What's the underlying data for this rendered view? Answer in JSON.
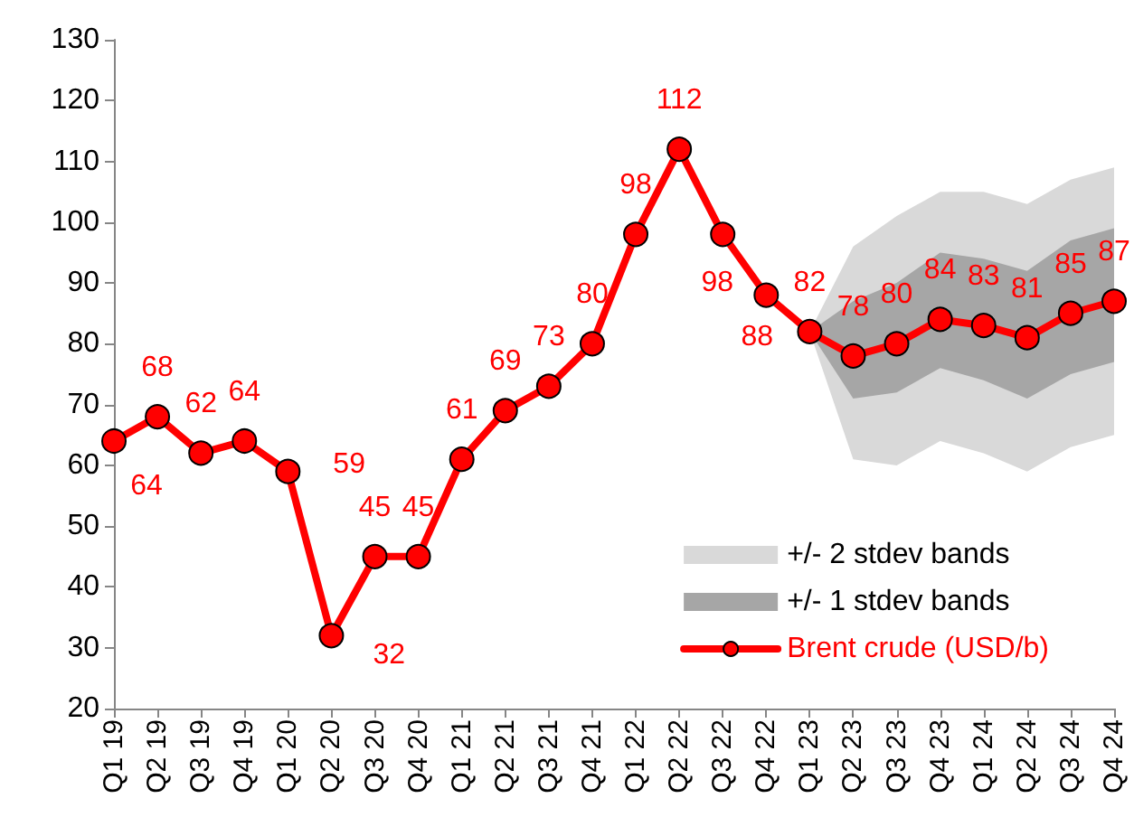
{
  "chart_data": {
    "type": "line",
    "categories": [
      "Q1 19",
      "Q2 19",
      "Q3 19",
      "Q4 19",
      "Q1 20",
      "Q2 20",
      "Q3 20",
      "Q4 20",
      "Q1 21",
      "Q2 21",
      "Q3 21",
      "Q4 21",
      "Q1 22",
      "Q2 22",
      "Q3 22",
      "Q4 22",
      "Q1 23",
      "Q2 23",
      "Q3 23",
      "Q4 23",
      "Q1 24",
      "Q2 24",
      "Q3 24",
      "Q4 24"
    ],
    "ylim": [
      20,
      130
    ],
    "yticks": [
      20,
      30,
      40,
      50,
      60,
      70,
      80,
      90,
      100,
      110,
      120,
      130
    ],
    "legend": "bottom right",
    "series": [
      {
        "name": "+/- 2 stdev bands",
        "color": "#d9d9d9",
        "values": [
          null,
          null,
          null,
          null,
          null,
          null,
          null,
          null,
          null,
          null,
          null,
          null,
          null,
          null,
          null,
          null,
          null,
          null,
          null,
          null,
          null,
          null,
          null,
          null
        ],
        "lower": [
          null,
          null,
          null,
          null,
          null,
          null,
          null,
          null,
          null,
          null,
          null,
          null,
          null,
          null,
          null,
          null,
          82,
          61,
          60,
          64,
          62,
          59,
          63,
          65
        ],
        "upper": [
          null,
          null,
          null,
          null,
          null,
          null,
          null,
          null,
          null,
          null,
          null,
          null,
          null,
          null,
          null,
          null,
          82,
          96,
          101,
          105,
          105,
          103,
          107,
          109
        ]
      },
      {
        "name": "+/- 1 stdev bands",
        "color": "#a6a6a6",
        "values": [
          null,
          null,
          null,
          null,
          null,
          null,
          null,
          null,
          null,
          null,
          null,
          null,
          null,
          null,
          null,
          null,
          null,
          null,
          null,
          null,
          null,
          null,
          null,
          null
        ],
        "lower": [
          null,
          null,
          null,
          null,
          null,
          null,
          null,
          null,
          null,
          null,
          null,
          null,
          null,
          null,
          null,
          null,
          82,
          71,
          72,
          76,
          74,
          71,
          75,
          77
        ],
        "upper": [
          null,
          null,
          null,
          null,
          null,
          null,
          null,
          null,
          null,
          null,
          null,
          null,
          null,
          null,
          null,
          null,
          82,
          87,
          90,
          95,
          94,
          92,
          97,
          99
        ]
      },
      {
        "name": "Brent crude (USD/b)",
        "color": "#ff0000",
        "marker": "circle",
        "values": [
          64,
          68,
          62,
          64,
          59,
          32,
          45,
          45,
          61,
          69,
          73,
          80,
          98,
          112,
          98,
          88,
          82,
          78,
          80,
          84,
          83,
          81,
          85,
          87
        ],
        "value_labels": [
          "64",
          "68",
          "62",
          "64",
          "59",
          "32",
          "45",
          "45",
          "61",
          "69",
          "73",
          "80",
          "98",
          "112",
          "98",
          "88",
          "82",
          "78",
          "80",
          "84",
          "83",
          "81",
          "85",
          "87"
        ]
      }
    ]
  }
}
